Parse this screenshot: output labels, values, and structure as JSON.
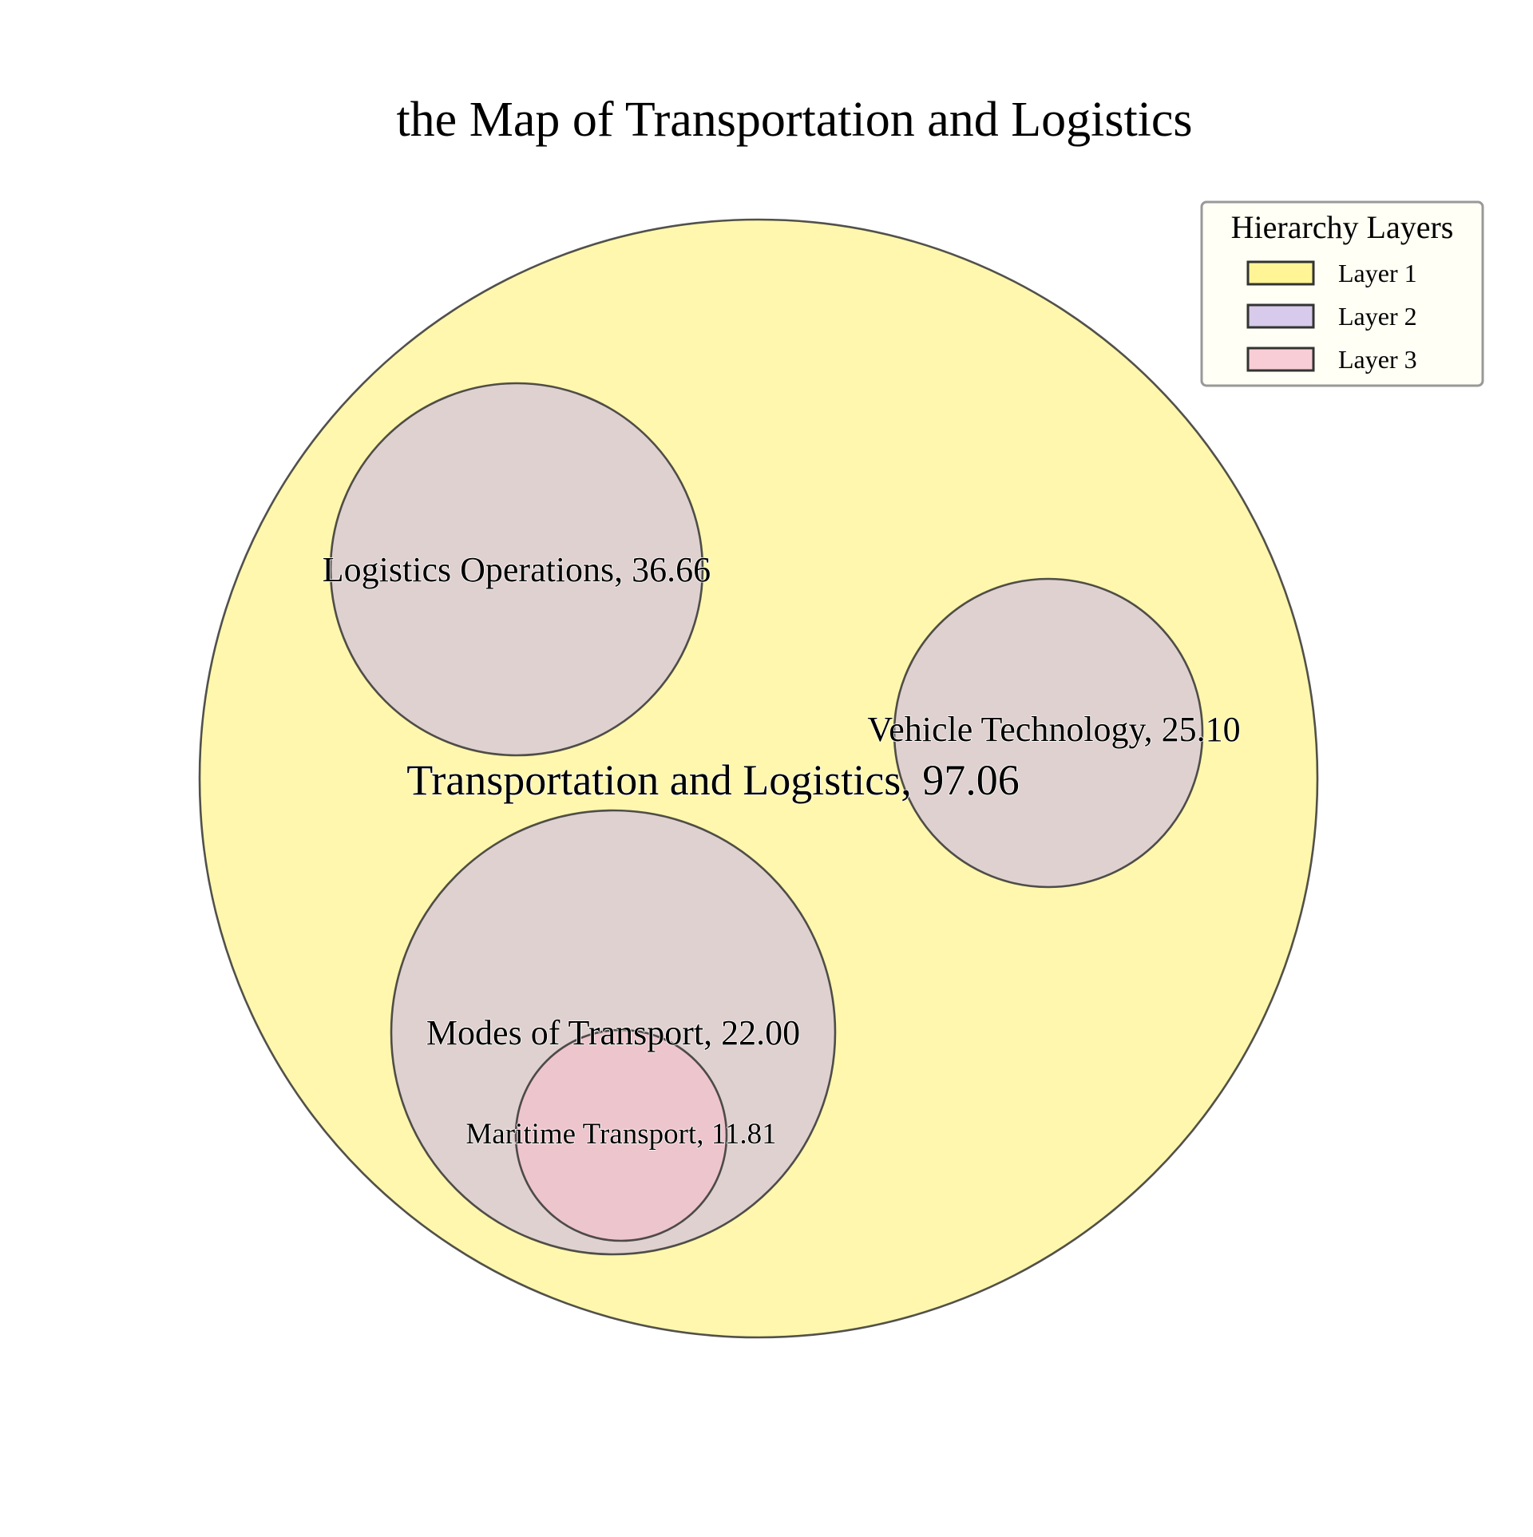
{
  "chart_data": {
    "type": "circle_packing",
    "title": "the Map of Transportation and Logistics",
    "legend": {
      "title": "Hierarchy Layers",
      "position": "top-right",
      "entries": [
        {
          "label": "Layer 1",
          "color": "#fff176"
        },
        {
          "label": "Layer 2",
          "color": "#c9b8e6"
        },
        {
          "label": "Layer 3",
          "color": "#f7bcc9"
        }
      ]
    },
    "nodes": [
      {
        "name": "Transportation and Logistics",
        "value": 97.06,
        "layer": 1,
        "parent": null,
        "label": "Transportation and Logistics, 97.06"
      },
      {
        "name": "Logistics Operations",
        "value": 36.66,
        "layer": 2,
        "parent": "Transportation and Logistics",
        "label": "Logistics Operations, 36.66"
      },
      {
        "name": "Vehicle Technology",
        "value": 25.1,
        "layer": 2,
        "parent": "Transportation and Logistics",
        "label": "Vehicle Technology, 25.10"
      },
      {
        "name": "Modes of Transport",
        "value": 22.0,
        "layer": 2,
        "parent": "Transportation and Logistics",
        "label": "Modes of Transport, 22.00"
      },
      {
        "name": "Maritime Transport",
        "value": 11.81,
        "layer": 3,
        "parent": "Modes of Transport",
        "label": "Maritime Transport, 11.81"
      }
    ],
    "colors": {
      "layer1_fill": "#fff176",
      "layer2_fill": "#c9b8e6",
      "layer3_fill": "#f7bcc9",
      "edge": "#333333"
    }
  }
}
